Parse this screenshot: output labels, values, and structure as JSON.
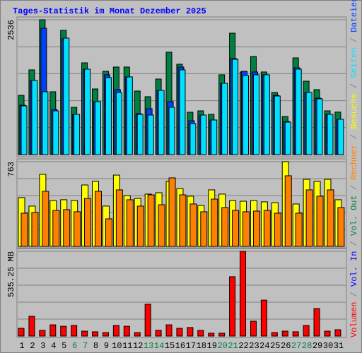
{
  "title": "Tages-Statistik im Monat Dezember 2025",
  "legend_separator": " / ",
  "chart_data": [
    {
      "type": "bar",
      "ylim": [
        0,
        2536
      ],
      "yticks": [
        2536
      ],
      "series": [
        {
          "name": "Anfragen",
          "color": "#008040",
          "values": [
            1115,
            1594,
            2536,
            1182,
            2337,
            890,
            1726,
            1235,
            1567,
            1647,
            1647,
            1195,
            1089,
            1421,
            1926,
            1700,
            797,
            823,
            757,
            1501,
            2284,
            1554,
            1846,
            1554,
            1169,
            717,
            1819,
            1381,
            1222,
            823,
            800
          ]
        },
        {
          "name": "Dateien",
          "color": "#0040ff",
          "values": [
            930,
            1394,
            2377,
            850,
            2178,
            757,
            1607,
            996,
            1501,
            1222,
            1461,
            770,
            863,
            1208,
            996,
            1647,
            637,
            744,
            651,
            1341,
            1806,
            1567,
            1554,
            1501,
            1115,
            624,
            1633,
            1169,
            1062,
            757,
            664
          ]
        },
        {
          "name": "Seiten",
          "color": "#00e0ff",
          "values": [
            916,
            1394,
            1182,
            823,
            2191,
            757,
            1607,
            996,
            1448,
            1169,
            1461,
            757,
            744,
            1208,
            890,
            1594,
            584,
            744,
            651,
            1341,
            1793,
            1487,
            1501,
            1501,
            1102,
            611,
            1607,
            1169,
            1049,
            757,
            664
          ]
        }
      ]
    },
    {
      "type": "bar",
      "ylim": [
        0,
        763
      ],
      "yticks": [
        763
      ],
      "series": [
        {
          "name": "Besuche",
          "color": "#ffff00",
          "values": [
            439,
            363,
            649,
            413,
            420,
            413,
            553,
            585,
            363,
            642,
            458,
            432,
            471,
            483,
            585,
            521,
            452,
            369,
            509,
            471,
            413,
            407,
            413,
            401,
            394,
            763,
            382,
            604,
            585,
            604,
            420
          ]
        },
        {
          "name": "Rechner",
          "color": "#ff8000",
          "values": [
            299,
            305,
            496,
            324,
            331,
            312,
            432,
            496,
            248,
            509,
            420,
            363,
            464,
            375,
            617,
            464,
            382,
            312,
            426,
            350,
            324,
            312,
            318,
            324,
            299,
            636,
            299,
            509,
            452,
            509,
            350
          ]
        }
      ]
    },
    {
      "type": "bar",
      "ylim": [
        0,
        535.25
      ],
      "yticks": [
        {
          "value": 535.25,
          "label": "535.25 MB"
        }
      ],
      "categories": [
        "1",
        "2",
        "3",
        "4",
        "5",
        "6",
        "7",
        "8",
        "9",
        "10",
        "11",
        "12",
        "13",
        "14",
        "15",
        "16",
        "17",
        "18",
        "19",
        "20",
        "21",
        "22",
        "23",
        "24",
        "25",
        "26",
        "27",
        "28",
        "29",
        "30",
        "31"
      ],
      "category_colors": [
        "#000000",
        "#000000",
        "#000000",
        "#000000",
        "#000000",
        "#008040",
        "#008040",
        "#000000",
        "#000000",
        "#000000",
        "#000000",
        "#000000",
        "#008040",
        "#008040",
        "#000000",
        "#000000",
        "#000000",
        "#000000",
        "#000000",
        "#008040",
        "#008040",
        "#000000",
        "#000000",
        "#000000",
        "#000000",
        "#000000",
        "#008040",
        "#008040",
        "#000000",
        "#000000",
        "#000000"
      ],
      "series": [
        {
          "name": "Volumen",
          "color": "#ff0000",
          "values": [
            49,
            125,
            36,
            71,
            62,
            67,
            31,
            27,
            22,
            67,
            62,
            22,
            201,
            36,
            71,
            49,
            54,
            36,
            18,
            18,
            375,
            535.25,
            94,
            227,
            22,
            31,
            27,
            67,
            174,
            31,
            40
          ]
        }
      ],
      "legend_extra": [
        {
          "name": "Vol. In",
          "color": "#0000ff"
        },
        {
          "name": "Vol. Out",
          "color": "#008040"
        }
      ]
    }
  ]
}
